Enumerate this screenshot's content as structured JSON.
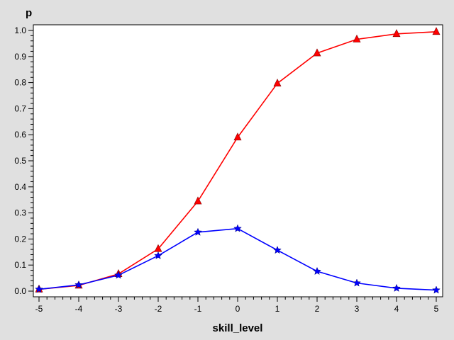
{
  "chart_data": {
    "type": "line",
    "title": "",
    "xlabel": "skill_level",
    "ylabel": "p",
    "xlim": [
      -5,
      5
    ],
    "ylim": [
      0,
      1
    ],
    "x_ticks": [
      "-5",
      "-4",
      "-3",
      "-2",
      "-1",
      "0",
      "1",
      "2",
      "3",
      "4",
      "5"
    ],
    "y_ticks": [
      "0.0",
      "0.1",
      "0.2",
      "0.3",
      "0.4",
      "0.5",
      "0.6",
      "0.7",
      "0.8",
      "0.9",
      "1.0"
    ],
    "grid": false,
    "legend": "none",
    "x": [
      -5,
      -4,
      -3,
      -2,
      -1,
      0,
      1,
      2,
      3,
      4,
      5
    ],
    "series": [
      {
        "marker": "triangle",
        "color": "#ff0000",
        "values": [
          0.007,
          0.022,
          0.066,
          0.162,
          0.345,
          0.59,
          0.797,
          0.913,
          0.966,
          0.987,
          0.995
        ]
      },
      {
        "marker": "star",
        "color": "#0000ff",
        "values": [
          0.007,
          0.024,
          0.061,
          0.136,
          0.226,
          0.24,
          0.157,
          0.076,
          0.031,
          0.011,
          0.004
        ]
      }
    ]
  }
}
